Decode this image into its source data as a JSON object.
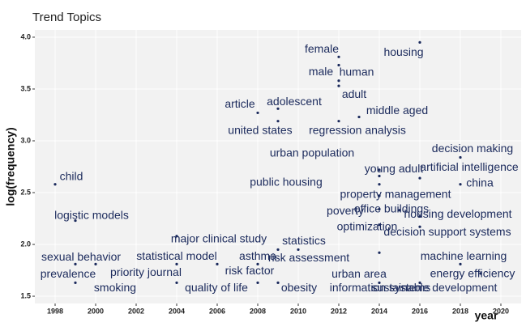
{
  "chart_data": {
    "type": "scatter",
    "title": "Trend Topics",
    "x_label": "year",
    "y_label": "log(frequency)",
    "labels": [
      "child",
      "logistic models",
      "sexual behavior",
      "prevalence",
      "smoking",
      "priority journal",
      "major clinical study",
      "statistical model",
      "quality of life",
      "asthma",
      "risk factor",
      "article",
      "adolescent",
      "united states",
      "statistics",
      "obesity",
      "risk assessment",
      "female",
      "male",
      "human",
      "adult",
      "regression analysis",
      "middle aged",
      "urban population",
      "young adult",
      "public housing",
      "housing",
      "artificial intelligence",
      "property management",
      "poverty",
      "office buildings",
      "optimization",
      "housing development",
      "decision support systems",
      "urban area",
      "information systems",
      "sustainable development",
      "decision making",
      "china",
      "machine learning",
      "energy efficiency"
    ],
    "x": [
      1998,
      1999,
      1999,
      2000,
      1999,
      2004,
      2004,
      2006,
      2004,
      2008,
      2008,
      2008,
      2009,
      2009,
      2009,
      2009,
      2010,
      2012,
      2012,
      2012,
      2012,
      2012,
      2013,
      2014,
      2014,
      2014,
      2016,
      2016,
      2014,
      2014,
      2015,
      2014,
      2016,
      2016,
      2014,
      2014,
      2016,
      2018,
      2018,
      2018,
      2019
    ],
    "values": [
      2.58,
      2.23,
      1.81,
      1.81,
      1.63,
      1.81,
      2.08,
      1.81,
      1.63,
      1.81,
      1.63,
      3.27,
      3.31,
      3.19,
      1.95,
      1.63,
      1.95,
      3.81,
      3.73,
      3.58,
      3.53,
      3.19,
      3.23,
      2.72,
      2.66,
      2.58,
      3.95,
      2.64,
      2.47,
      2.34,
      2.33,
      2.19,
      2.27,
      2.17,
      1.92,
      1.63,
      1.63,
      2.84,
      2.58,
      1.81,
      1.72
    ],
    "color": "#1b2a5c",
    "xlim": [
      1997,
      2021
    ],
    "xticks": [
      1998,
      2000,
      2002,
      2004,
      2006,
      2008,
      2010,
      2012,
      2014,
      2016,
      2018,
      2020
    ],
    "ylim": [
      1.43,
      4.07
    ],
    "yticks": [
      1.5,
      {
        "value": 2,
        "label": "2.0"
      },
      2.5,
      {
        "value": 3,
        "label": "3.0"
      },
      3.5,
      {
        "value": 4,
        "label": "4.0"
      }
    ],
    "grid": true
  }
}
